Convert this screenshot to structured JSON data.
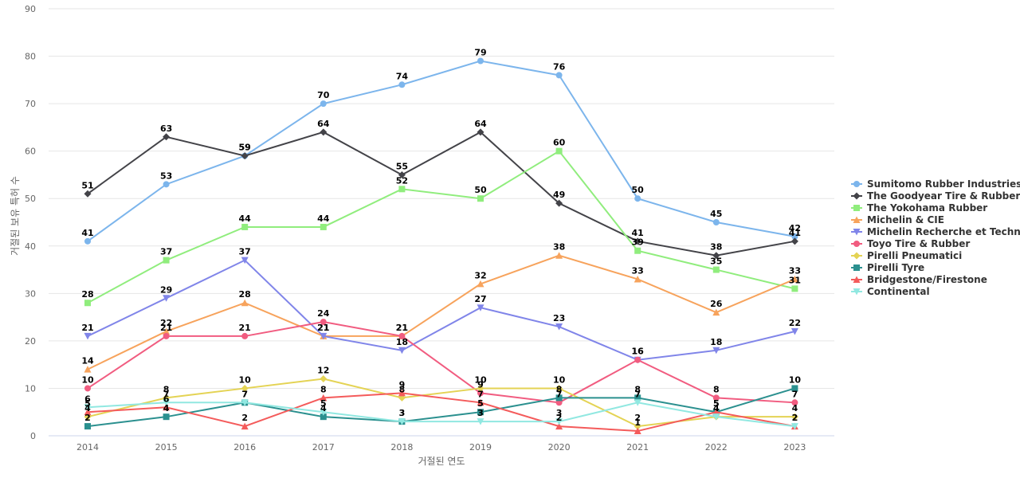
{
  "chart_data": {
    "type": "line",
    "xlabel": "거절된 연도",
    "ylabel": "거절된 보유 특허 수",
    "categories": [
      "2014",
      "2015",
      "2016",
      "2017",
      "2018",
      "2019",
      "2020",
      "2021",
      "2022",
      "2023"
    ],
    "ylim": [
      0,
      90
    ],
    "yticks": [
      0,
      10,
      20,
      30,
      40,
      50,
      60,
      70,
      80,
      90
    ],
    "grid": true,
    "legend_position": "right",
    "series": [
      {
        "name": "Sumitomo Rubber Industries",
        "color": "#7cb5ec",
        "marker": "circle",
        "values": [
          41,
          53,
          59,
          70,
          74,
          79,
          76,
          50,
          45,
          42
        ]
      },
      {
        "name": "The Goodyear Tire & Rubber",
        "color": "#434348",
        "marker": "diamond",
        "values": [
          51,
          63,
          59,
          64,
          55,
          64,
          49,
          41,
          38,
          41
        ]
      },
      {
        "name": "The Yokohama Rubber",
        "color": "#90ed7d",
        "marker": "square",
        "values": [
          28,
          37,
          44,
          44,
          52,
          50,
          60,
          39,
          35,
          31
        ]
      },
      {
        "name": "Michelin & CIE",
        "color": "#f7a35c",
        "marker": "triangle",
        "values": [
          14,
          22,
          28,
          21,
          21,
          32,
          38,
          33,
          26,
          33
        ]
      },
      {
        "name": "Michelin Recherche et Techn...",
        "color": "#8085e9",
        "marker": "triangle-down",
        "values": [
          21,
          29,
          37,
          21,
          18,
          27,
          23,
          16,
          18,
          22
        ]
      },
      {
        "name": "Toyo Tire & Rubber",
        "color": "#f15c80",
        "marker": "circle",
        "values": [
          10,
          21,
          21,
          24,
          21,
          9,
          7,
          16,
          8,
          7
        ]
      },
      {
        "name": "Pirelli Pneumatici",
        "color": "#e4d354",
        "marker": "diamond",
        "values": [
          4,
          8,
          10,
          12,
          8,
          10,
          10,
          2,
          4,
          4
        ]
      },
      {
        "name": "Pirelli Tyre",
        "color": "#2b908f",
        "marker": "square",
        "values": [
          2,
          4,
          7,
          4,
          3,
          5,
          8,
          8,
          5,
          10
        ]
      },
      {
        "name": "Bridgestone/Firestone",
        "color": "#f45b5b",
        "marker": "triangle",
        "values": [
          5,
          6,
          2,
          8,
          9,
          7,
          2,
          1,
          5,
          2
        ]
      },
      {
        "name": "Continental",
        "color": "#91e8e1",
        "marker": "triangle-down",
        "values": [
          6,
          7,
          7,
          5,
          3,
          3,
          3,
          7,
          4,
          2
        ]
      }
    ]
  }
}
